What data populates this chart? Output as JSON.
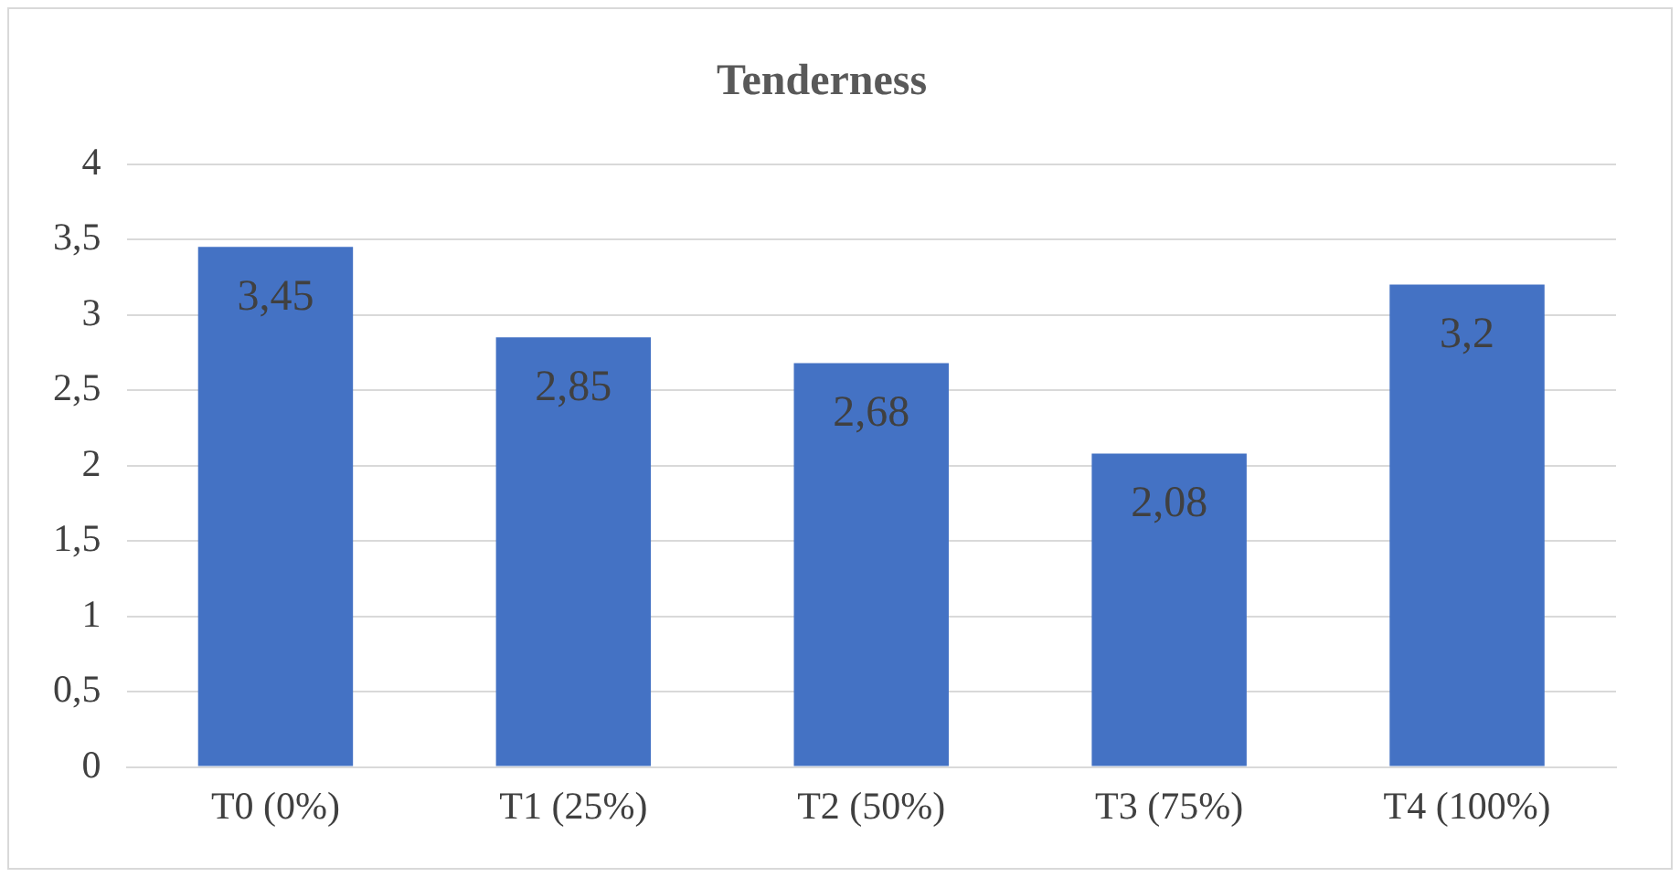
{
  "chart_data": {
    "type": "bar",
    "title": "Tenderness",
    "categories": [
      "T0 (0%)",
      "T1 (25%)",
      "T2 (50%)",
      "T3 (75%)",
      "T4 (100%)"
    ],
    "values": [
      3.45,
      2.85,
      2.68,
      2.08,
      3.2
    ],
    "value_labels": [
      "3,45",
      "2,85",
      "2,68",
      "2,08",
      "3,2"
    ],
    "color": "#4472c4",
    "ylim": [
      0,
      4
    ],
    "yticks": [
      0,
      {
        "value": 0.5,
        "label": "0,5"
      },
      1,
      {
        "value": 1.5,
        "label": "1,5"
      },
      2,
      {
        "value": 2.5,
        "label": "2,5"
      },
      3,
      {
        "value": 3.5,
        "label": "3,5"
      },
      4
    ],
    "grid": "y",
    "legend": false
  }
}
